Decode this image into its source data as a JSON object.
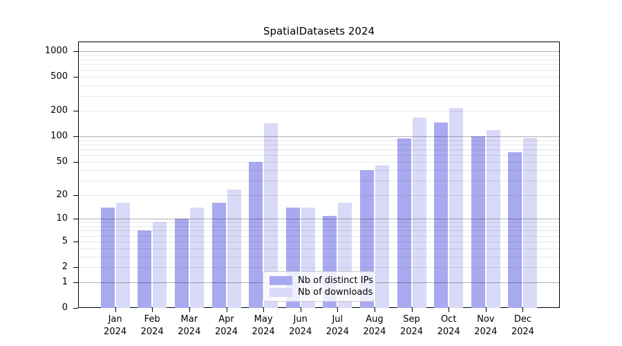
{
  "title": "SpatialDatasets 2024",
  "chart_data": {
    "type": "bar",
    "title": "SpatialDatasets 2024",
    "categories": [
      "Jan",
      "Feb",
      "Mar",
      "Apr",
      "May",
      "Jun",
      "Jul",
      "Aug",
      "Sep",
      "Oct",
      "Nov",
      "Dec"
    ],
    "x_year_label": "2024",
    "series": [
      {
        "name": "Nb of distinct IPs",
        "color": "#a9a9f0",
        "values": [
          14,
          7,
          10,
          16,
          50,
          14,
          11,
          40,
          95,
          145,
          100,
          65
        ]
      },
      {
        "name": "Nb of downloads",
        "color": "#d9d9f8",
        "values": [
          16,
          9,
          14,
          23,
          144,
          14,
          16,
          45,
          168,
          218,
          120,
          96
        ]
      }
    ],
    "yscale": "symlog",
    "yticks": [
      0,
      1,
      2,
      5,
      10,
      20,
      50,
      100,
      200,
      500,
      1000
    ],
    "ylim": [
      0,
      1300
    ],
    "grid": true,
    "legend_position": "lower-center"
  }
}
